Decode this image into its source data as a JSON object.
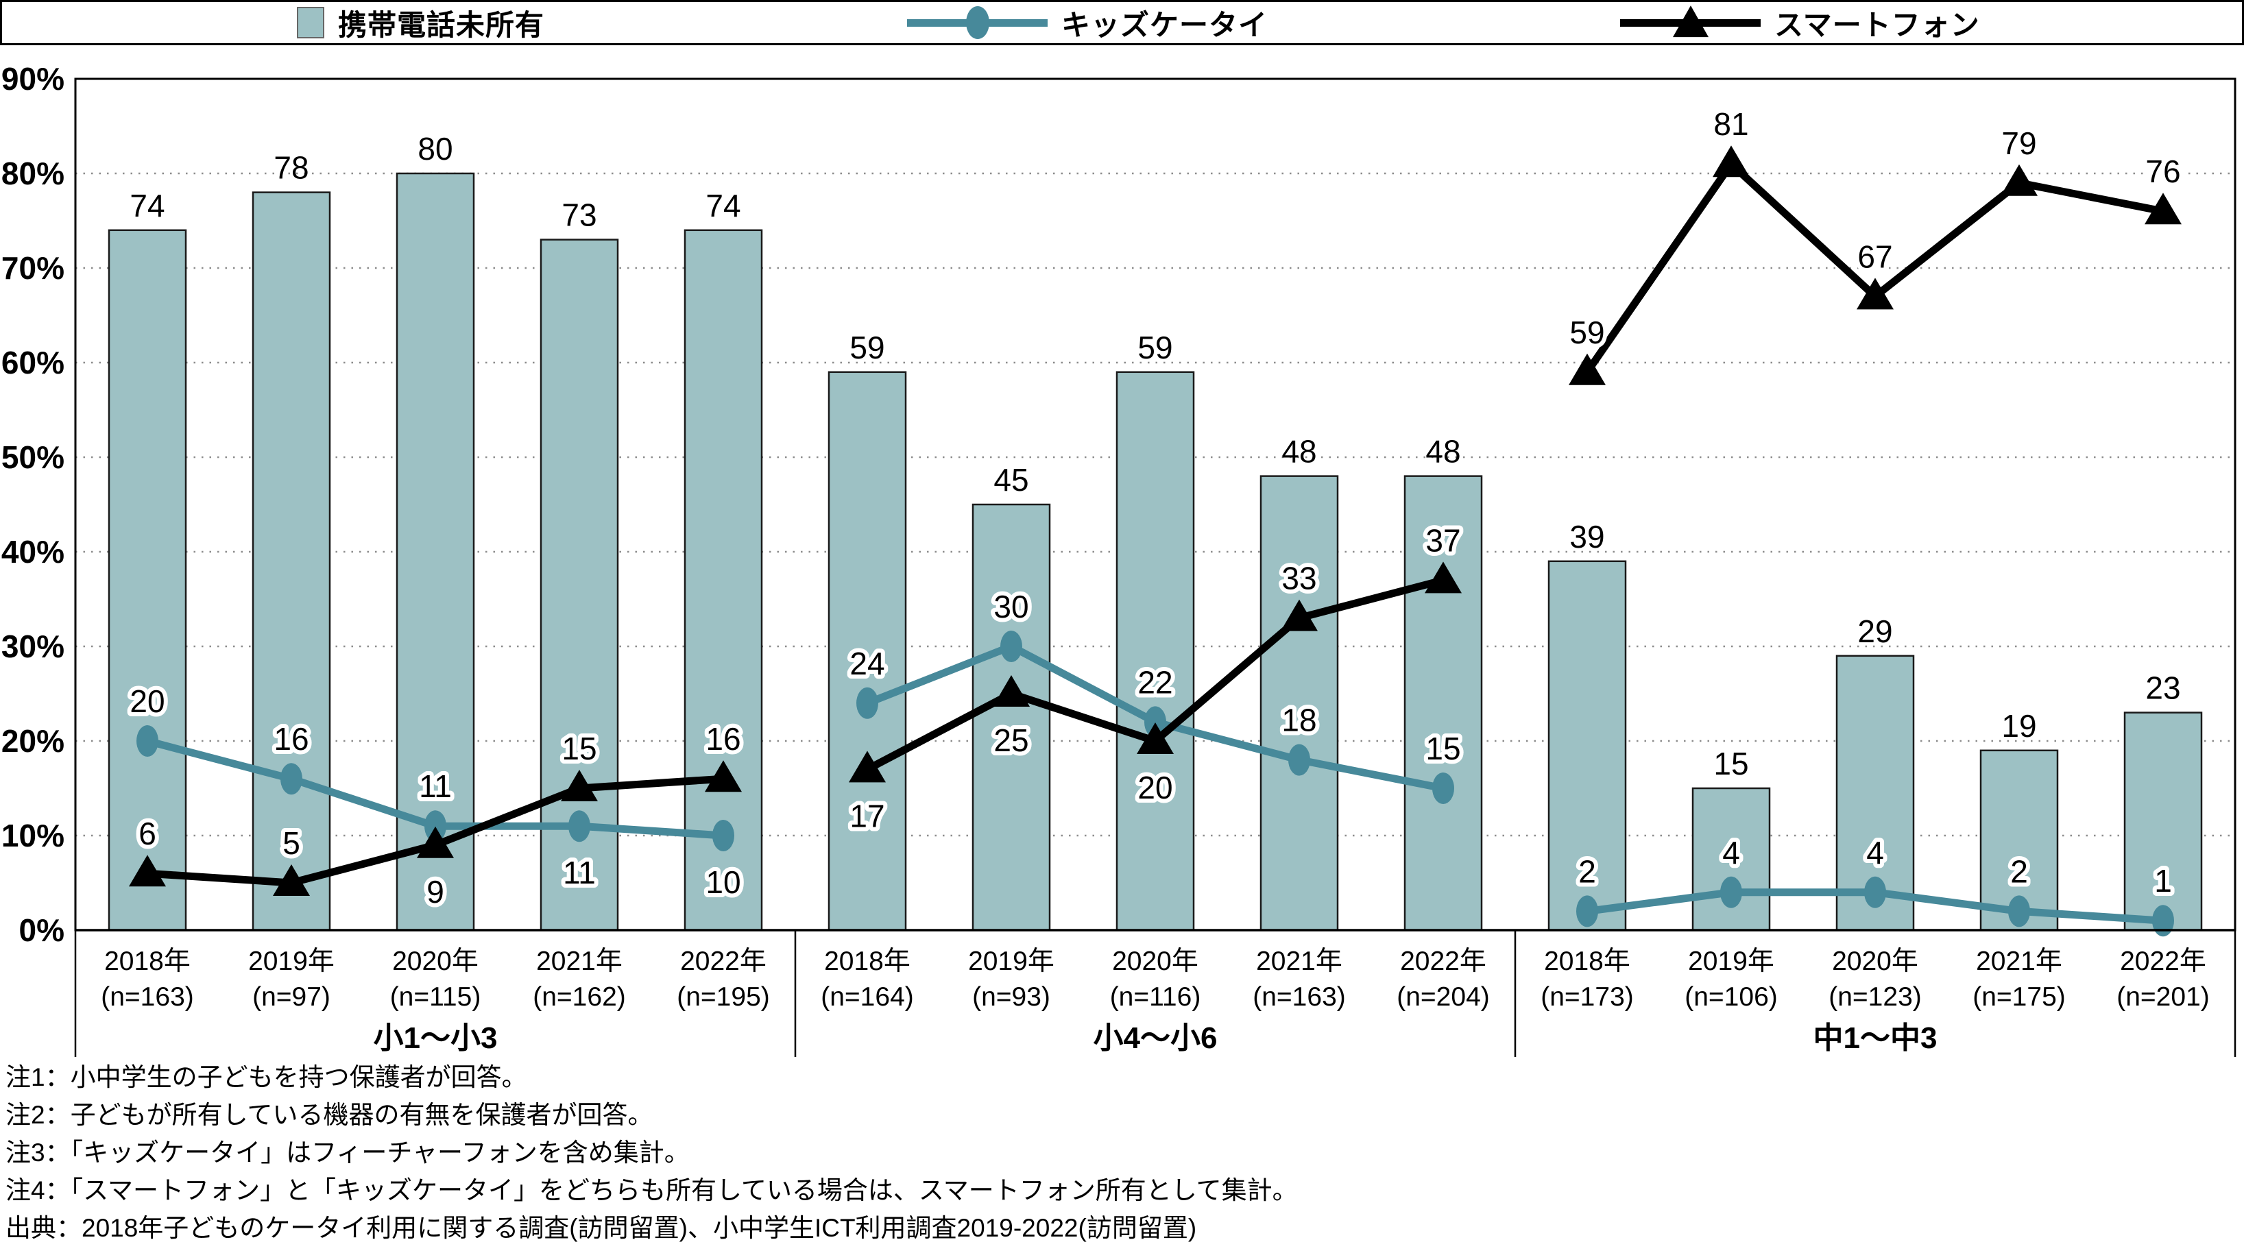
{
  "legend": {
    "items": [
      {
        "label": "携帯電話未所有",
        "marker": "bar-swatch",
        "color": "#9dc1c4"
      },
      {
        "label": "キッズケータイ",
        "marker": "circle-line",
        "color": "#47899a"
      },
      {
        "label": "スマートフォン",
        "marker": "triangle-line",
        "color": "#000000"
      }
    ]
  },
  "chart_data": {
    "type": "bar+line",
    "title": "",
    "ylim": [
      0,
      90
    ],
    "ytick_step": 10,
    "ytick_suffix": "%",
    "grid": "horizontal-dotted",
    "legend_position": "top",
    "colors": {
      "bar": "#9dc1c4",
      "kids": "#47899a",
      "smart": "#000000"
    },
    "series_names": {
      "bar": "携帯電話未所有",
      "kids": "キッズケータイ",
      "smart": "スマートフォン"
    },
    "groups": [
      {
        "label": "小1～小3",
        "categories": [
          "2018年",
          "2019年",
          "2020年",
          "2021年",
          "2022年"
        ],
        "n_labels": [
          "(n=163)",
          "(n=97)",
          "(n=115)",
          "(n=162)",
          "(n=195)"
        ],
        "series": {
          "bar": [
            74,
            78,
            80,
            73,
            74
          ],
          "kids": [
            20,
            16,
            11,
            11,
            10
          ],
          "smart": [
            6,
            5,
            9,
            15,
            16
          ]
        },
        "label_pos": {
          "kids": [
            "above",
            "above",
            "above",
            "below",
            "below"
          ],
          "smart": [
            "above",
            "above",
            "below",
            "above",
            "above"
          ]
        }
      },
      {
        "label": "小4～小6",
        "categories": [
          "2018年",
          "2019年",
          "2020年",
          "2021年",
          "2022年"
        ],
        "n_labels": [
          "(n=164)",
          "(n=93)",
          "(n=116)",
          "(n=163)",
          "(n=204)"
        ],
        "series": {
          "bar": [
            59,
            45,
            59,
            48,
            48
          ],
          "kids": [
            24,
            30,
            22,
            18,
            15
          ],
          "smart": [
            17,
            25,
            20,
            33,
            37
          ]
        },
        "label_pos": {
          "kids": [
            "above",
            "above",
            "above",
            "above",
            "above"
          ],
          "smart": [
            "below",
            "below",
            "below",
            "above",
            "above"
          ]
        }
      },
      {
        "label": "中1～中3",
        "categories": [
          "2018年",
          "2019年",
          "2020年",
          "2021年",
          "2022年"
        ],
        "n_labels": [
          "(n=173)",
          "(n=106)",
          "(n=123)",
          "(n=175)",
          "(n=201)"
        ],
        "series": {
          "bar": [
            39,
            15,
            29,
            19,
            23
          ],
          "kids": [
            2,
            4,
            4,
            2,
            1
          ],
          "smart": [
            59,
            81,
            67,
            79,
            76
          ]
        },
        "label_pos": {
          "kids": [
            "above",
            "above",
            "above",
            "above",
            "above"
          ],
          "smart": [
            "above",
            "above",
            "above",
            "above",
            "above"
          ]
        }
      }
    ]
  },
  "footnotes": [
    "注1：小中学生の子どもを持つ保護者が回答。",
    "注2：子どもが所有している機器の有無を保護者が回答。",
    "注3：「キッズケータイ」はフィーチャーフォンを含め集計。",
    "注4：「スマートフォン」と「キッズケータイ」をどちらも所有している場合は、スマートフォン所有として集計。",
    "出典：2018年子どものケータイ利用に関する調査(訪問留置)、小中学生ICT利用調査2019-2022(訪問留置)"
  ]
}
